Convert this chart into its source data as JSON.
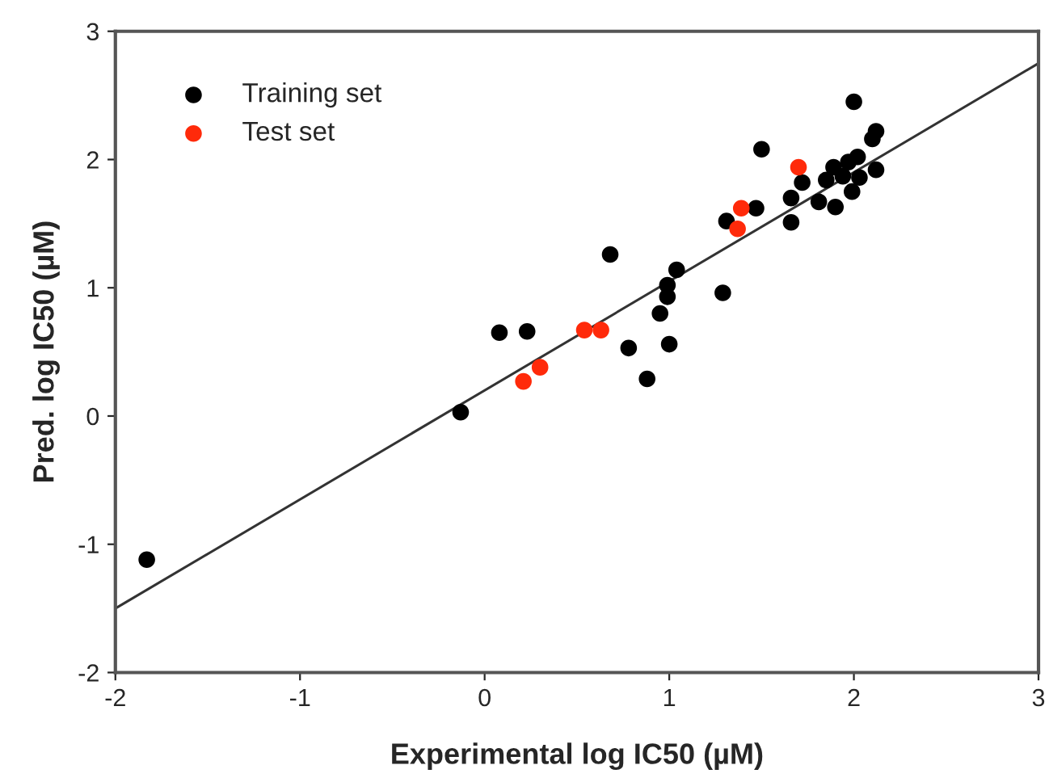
{
  "chart_data": {
    "type": "scatter",
    "xlabel": "Experimental log IC50 (µM)",
    "ylabel": "Pred. log IC50 (µM)",
    "xlim": [
      -2,
      3
    ],
    "ylim": [
      -2,
      3
    ],
    "xticks": [
      -2,
      -1,
      0,
      1,
      2,
      3
    ],
    "yticks": [
      -2,
      -1,
      0,
      1,
      2,
      3
    ],
    "grid": false,
    "legend": "top left",
    "marker": "circle",
    "series": [
      {
        "name": "Training set",
        "color": "#000000",
        "x": [
          -1.83,
          -0.13,
          0.08,
          0.23,
          0.68,
          0.78,
          0.88,
          0.95,
          1.0,
          0.99,
          0.99,
          1.04,
          1.29,
          1.31,
          1.47,
          1.5,
          1.66,
          1.66,
          1.72,
          1.81,
          1.9,
          1.85,
          1.89,
          1.94,
          1.99,
          1.97,
          2.02,
          2.03,
          2.12,
          2.1,
          2.12,
          2.0
        ],
        "values": [
          -1.12,
          0.03,
          0.65,
          0.66,
          1.26,
          0.53,
          0.29,
          0.8,
          0.56,
          0.93,
          1.02,
          1.14,
          0.96,
          1.52,
          1.62,
          2.08,
          1.7,
          1.51,
          1.82,
          1.67,
          1.63,
          1.84,
          1.94,
          1.87,
          1.75,
          1.98,
          2.02,
          1.86,
          1.92,
          2.16,
          2.22,
          2.45
        ]
      },
      {
        "name": "Test set",
        "color": "#ff2a0a",
        "x": [
          0.21,
          0.3,
          0.54,
          0.63,
          1.37,
          1.39,
          1.7
        ],
        "values": [
          0.27,
          0.38,
          0.67,
          0.67,
          1.46,
          1.62,
          1.94
        ]
      },
      {
        "type": "line",
        "color": "#333333",
        "x": [
          -2,
          3
        ],
        "values": [
          -1.5,
          2.75
        ],
        "marker": "none",
        "line_style": "solid"
      }
    ]
  }
}
